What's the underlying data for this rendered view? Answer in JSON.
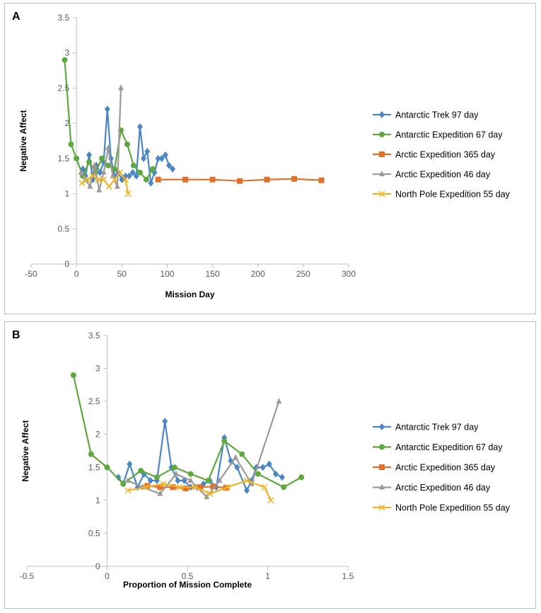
{
  "chart_data": [
    {
      "panel": "A",
      "type": "line",
      "xlabel": "Mission Day",
      "ylabel": "Negative Affect",
      "xlim": [
        -50,
        300
      ],
      "ylim": [
        0,
        3.5
      ],
      "xticks": [
        -50,
        0,
        50,
        100,
        150,
        200,
        250,
        300
      ],
      "yticks": [
        0,
        0.5,
        1,
        1.5,
        2,
        2.5,
        3,
        3.5
      ],
      "legend_position": "right",
      "series": [
        {
          "name": "Antarctic Trek 97 day",
          "color": "#4a86c5",
          "marker": "diamond",
          "x": [
            7,
            10,
            14,
            18,
            22,
            26,
            30,
            34,
            38,
            42,
            46,
            50,
            54,
            58,
            62,
            66,
            70,
            74,
            78,
            82,
            86,
            90,
            94,
            98,
            102,
            106
          ],
          "y": [
            1.35,
            1.25,
            1.55,
            1.2,
            1.4,
            1.3,
            1.45,
            2.2,
            1.5,
            1.25,
            1.3,
            1.2,
            1.25,
            1.25,
            1.3,
            1.25,
            1.95,
            1.5,
            1.6,
            1.15,
            1.3,
            1.5,
            1.5,
            1.55,
            1.4,
            1.35
          ]
        },
        {
          "name": "Antarctic Expedition 67 day",
          "color": "#5fa83f",
          "marker": "circle",
          "x": [
            -13,
            -6,
            0,
            7,
            14,
            21,
            28,
            35,
            42,
            49,
            56,
            63,
            70,
            77,
            84
          ],
          "y": [
            2.9,
            1.7,
            1.5,
            1.25,
            1.45,
            1.3,
            1.5,
            1.4,
            1.35,
            1.9,
            1.7,
            1.4,
            1.3,
            1.2,
            1.35
          ]
        },
        {
          "name": "Arctic Expedition 365 day",
          "color": "#e0702a",
          "marker": "square",
          "x": [
            90,
            120,
            150,
            180,
            210,
            240,
            270
          ],
          "y": [
            1.2,
            1.2,
            1.2,
            1.18,
            1.2,
            1.21,
            1.19
          ]
        },
        {
          "name": "Arctic Expedition 46 day",
          "color": "#9a9a9a",
          "marker": "triangle",
          "x": [
            5,
            10,
            15,
            20,
            25,
            30,
            35,
            40,
            45,
            49
          ],
          "y": [
            1.3,
            1.2,
            1.1,
            1.4,
            1.05,
            1.3,
            1.65,
            1.25,
            1.1,
            2.5
          ]
        },
        {
          "name": "North Pole Expedition 55 day",
          "color": "#f0b323",
          "marker": "x",
          "x": [
            6,
            12,
            18,
            24,
            30,
            36,
            42,
            48,
            54,
            57
          ],
          "y": [
            1.15,
            1.2,
            1.25,
            1.2,
            1.2,
            1.1,
            1.2,
            1.3,
            1.2,
            1.0
          ]
        }
      ]
    },
    {
      "panel": "B",
      "type": "line",
      "xlabel": "Proportion of Mission Complete",
      "ylabel": "Negative Affect",
      "xlim": [
        -0.5,
        1.5
      ],
      "ylim": [
        0,
        3.5
      ],
      "xticks": [
        -0.5,
        0,
        0.5,
        1,
        1.5
      ],
      "yticks": [
        0,
        0.5,
        1,
        1.5,
        2,
        2.5,
        3,
        3.5
      ],
      "legend_position": "right",
      "series": [
        {
          "name": "Antarctic Trek 97 day",
          "color": "#4a86c5",
          "marker": "diamond",
          "x": [
            0.07,
            0.1,
            0.14,
            0.19,
            0.23,
            0.27,
            0.31,
            0.36,
            0.4,
            0.44,
            0.48,
            0.52,
            0.56,
            0.6,
            0.64,
            0.68,
            0.73,
            0.77,
            0.81,
            0.87,
            0.9,
            0.93,
            0.97,
            1.01,
            1.05,
            1.09
          ],
          "y": [
            1.35,
            1.25,
            1.55,
            1.2,
            1.4,
            1.3,
            1.3,
            2.2,
            1.5,
            1.3,
            1.3,
            1.2,
            1.2,
            1.25,
            1.3,
            1.2,
            1.95,
            1.6,
            1.5,
            1.15,
            1.3,
            1.5,
            1.5,
            1.55,
            1.4,
            1.35
          ]
        },
        {
          "name": "Antarctic Expedition 67 day",
          "color": "#5fa83f",
          "marker": "circle",
          "x": [
            -0.21,
            -0.1,
            0.0,
            0.1,
            0.21,
            0.31,
            0.42,
            0.52,
            0.63,
            0.73,
            0.84,
            0.94,
            1.1,
            1.21
          ],
          "y": [
            2.9,
            1.7,
            1.5,
            1.25,
            1.45,
            1.35,
            1.5,
            1.4,
            1.3,
            1.9,
            1.7,
            1.4,
            1.2,
            1.35
          ]
        },
        {
          "name": "Arctic Expedition 365 day",
          "color": "#e0702a",
          "marker": "square",
          "x": [
            0.25,
            0.33,
            0.41,
            0.49,
            0.58,
            0.66,
            0.74
          ],
          "y": [
            1.22,
            1.2,
            1.2,
            1.18,
            1.2,
            1.21,
            1.19
          ]
        },
        {
          "name": "Arctic Expedition 46 day",
          "color": "#9a9a9a",
          "marker": "triangle",
          "x": [
            0.13,
            0.22,
            0.33,
            0.43,
            0.52,
            0.62,
            0.7,
            0.8,
            0.9,
            1.07
          ],
          "y": [
            1.3,
            1.2,
            1.1,
            1.4,
            1.3,
            1.05,
            1.3,
            1.65,
            1.25,
            2.5
          ]
        },
        {
          "name": "North Pole Expedition 55 day",
          "color": "#f0b323",
          "marker": "x",
          "x": [
            0.13,
            0.24,
            0.35,
            0.45,
            0.55,
            0.64,
            0.75,
            0.87,
            0.98,
            1.02
          ],
          "y": [
            1.15,
            1.2,
            1.25,
            1.2,
            1.2,
            1.1,
            1.2,
            1.3,
            1.2,
            1.0
          ]
        }
      ]
    }
  ]
}
